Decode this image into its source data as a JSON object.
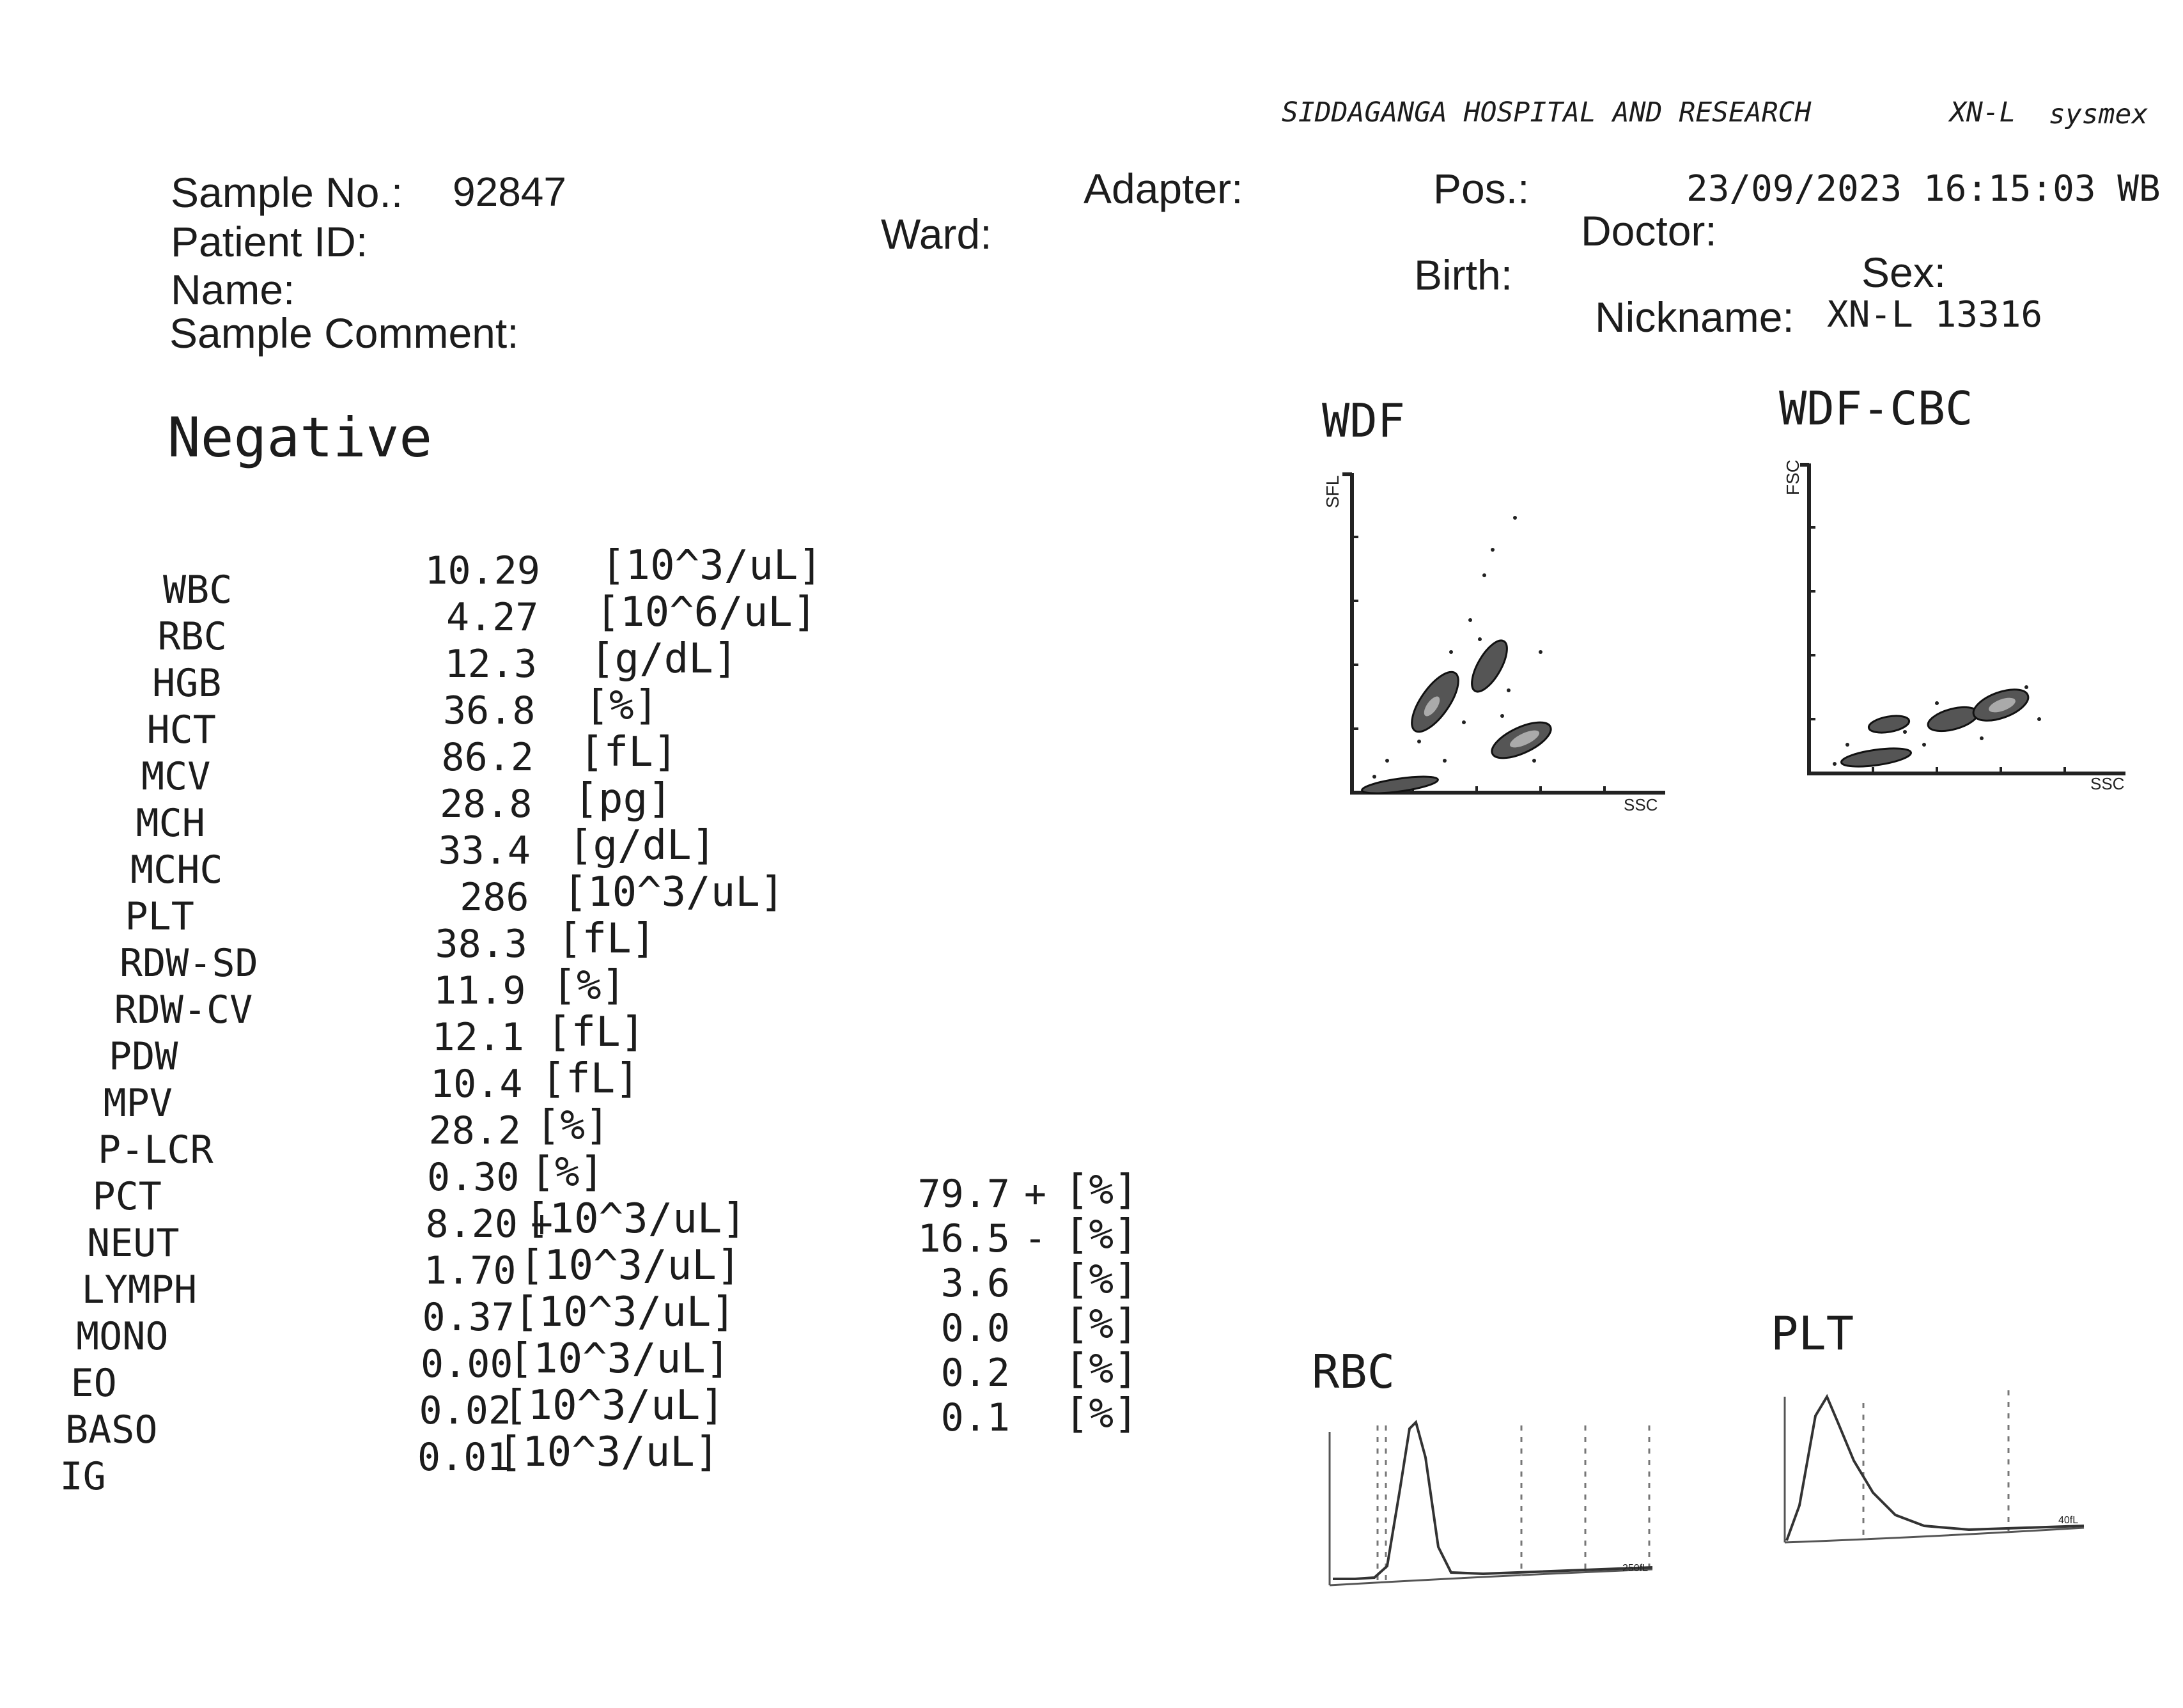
{
  "header": {
    "institution": "SIDDAGANGA HOSPITAL AND RESEARCH",
    "analyzer_model": "XN-L",
    "brand": "sysmex"
  },
  "patient": {
    "sample_no_label": "Sample No.:",
    "sample_no": "92847",
    "patient_id_label": "Patient ID:",
    "name_label": "Name:",
    "sample_comment_label": "Sample Comment:",
    "ward_label": "Ward:",
    "adapter_label": "Adapter:",
    "pos_label": "Pos.:",
    "datetime": "23/09/2023 16:15:03 WB",
    "doctor_label": "Doctor:",
    "birth_label": "Birth:",
    "sex_label": "Sex:",
    "nickname_label": "Nickname:",
    "nickname": "XN-L 13316"
  },
  "judgment": "Negative",
  "results": [
    {
      "param": "WBC",
      "value": "10.29",
      "flag": "",
      "unit": "[10^3/uL]"
    },
    {
      "param": "RBC",
      "value": "4.27",
      "flag": "",
      "unit": "[10^6/uL]"
    },
    {
      "param": "HGB",
      "value": "12.3",
      "flag": "",
      "unit": "[g/dL]"
    },
    {
      "param": "HCT",
      "value": "36.8",
      "flag": "",
      "unit": "[%]"
    },
    {
      "param": "MCV",
      "value": "86.2",
      "flag": "",
      "unit": "[fL]"
    },
    {
      "param": "MCH",
      "value": "28.8",
      "flag": "",
      "unit": "[pg]"
    },
    {
      "param": "MCHC",
      "value": "33.4",
      "flag": "",
      "unit": "[g/dL]"
    },
    {
      "param": "PLT",
      "value": "286",
      "flag": "",
      "unit": "[10^3/uL]"
    },
    {
      "param": "RDW-SD",
      "value": "38.3",
      "flag": "",
      "unit": "[fL]"
    },
    {
      "param": "RDW-CV",
      "value": "11.9",
      "flag": "",
      "unit": "[%]"
    },
    {
      "param": "PDW",
      "value": "12.1",
      "flag": "",
      "unit": "[fL]"
    },
    {
      "param": "MPV",
      "value": "10.4",
      "flag": "",
      "unit": "[fL]"
    },
    {
      "param": "P-LCR",
      "value": "28.2",
      "flag": "",
      "unit": "[%]"
    },
    {
      "param": "PCT",
      "value": "0.30",
      "flag": "",
      "unit": "[%]"
    },
    {
      "param": "NEUT",
      "value": "8.20",
      "flag": "+",
      "unit": "[10^3/uL]",
      "pct": "79.7",
      "pct_flag": "+",
      "pct_unit": "[%]"
    },
    {
      "param": "LYMPH",
      "value": "1.70",
      "flag": "",
      "unit": "[10^3/uL]",
      "pct": "16.5",
      "pct_flag": "-",
      "pct_unit": "[%]"
    },
    {
      "param": "MONO",
      "value": "0.37",
      "flag": "",
      "unit": "[10^3/uL]",
      "pct": "3.6",
      "pct_flag": "",
      "pct_unit": "[%]"
    },
    {
      "param": "EO",
      "value": "0.00",
      "flag": "",
      "unit": "[10^3/uL]",
      "pct": "0.0",
      "pct_flag": "",
      "pct_unit": "[%]"
    },
    {
      "param": "BASO",
      "value": "0.02",
      "flag": "",
      "unit": "[10^3/uL]",
      "pct": "0.2",
      "pct_flag": "",
      "pct_unit": "[%]"
    },
    {
      "param": "IG",
      "value": "0.01",
      "flag": "",
      "unit": "[10^3/uL]",
      "pct": "0.1",
      "pct_flag": "",
      "pct_unit": "[%]"
    }
  ],
  "plots": {
    "wdf": {
      "title": "WDF",
      "y_label": "SFL",
      "x_label": "SSC"
    },
    "wdf_cbc": {
      "title": "WDF-CBC",
      "y_label": "FSC",
      "x_label": "SSC"
    },
    "rbc": {
      "title": "RBC",
      "x_end_label": "250fL"
    },
    "plt": {
      "title": "PLT",
      "x_end_label": "40fL"
    }
  }
}
